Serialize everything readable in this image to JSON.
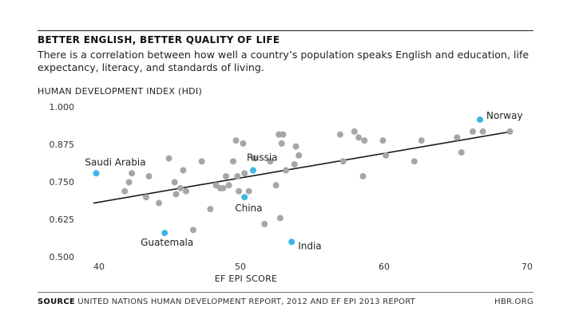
{
  "header": {
    "title": "BETTER ENGLISH, BETTER QUALITY OF LIFE",
    "subtitle": "There is a correlation between how well a country’s population speaks English and education, life expectancy, literacy, and standards of living."
  },
  "footer": {
    "source_label": "SOURCE",
    "source_text": " UNITED NATIONS HUMAN DEVELOPMENT REPORT, 2012 AND EF EPI 2013 REPORT",
    "brand": "HBR.ORG"
  },
  "chart_data": {
    "type": "scatter",
    "title": "BETTER ENGLISH, BETTER QUALITY OF LIFE",
    "xlabel": "EF EPI SCORE",
    "ylabel": "HUMAN DEVELOPMENT INDEX (HDI)",
    "xlim": [
      38,
      71
    ],
    "ylim": [
      0.5,
      1.0
    ],
    "x_ticks": [
      "40",
      "50",
      "60",
      "70"
    ],
    "y_ticks": [
      "1.000",
      "0.875",
      "0.750",
      "0.625",
      "0.500"
    ],
    "grid": false,
    "colors": {
      "points": "#a6a6a6",
      "highlight": "#3cb4e6",
      "trend": "#1a1a1a"
    },
    "trendline": {
      "x": [
        39.6,
        68.9
      ],
      "y": [
        0.68,
        0.92
      ]
    },
    "points": [
      {
        "x": 41.8,
        "y": 0.72
      },
      {
        "x": 42.1,
        "y": 0.75
      },
      {
        "x": 42.3,
        "y": 0.78
      },
      {
        "x": 43.3,
        "y": 0.7
      },
      {
        "x": 43.5,
        "y": 0.77
      },
      {
        "x": 44.2,
        "y": 0.68
      },
      {
        "x": 44.9,
        "y": 0.83
      },
      {
        "x": 45.3,
        "y": 0.75
      },
      {
        "x": 45.4,
        "y": 0.71
      },
      {
        "x": 45.7,
        "y": 0.73
      },
      {
        "x": 45.9,
        "y": 0.79
      },
      {
        "x": 46.1,
        "y": 0.72
      },
      {
        "x": 46.6,
        "y": 0.59
      },
      {
        "x": 47.2,
        "y": 0.82
      },
      {
        "x": 47.8,
        "y": 0.66
      },
      {
        "x": 48.2,
        "y": 0.74
      },
      {
        "x": 48.5,
        "y": 0.73
      },
      {
        "x": 48.7,
        "y": 0.73
      },
      {
        "x": 48.9,
        "y": 0.77
      },
      {
        "x": 49.1,
        "y": 0.74
      },
      {
        "x": 49.4,
        "y": 0.82
      },
      {
        "x": 49.6,
        "y": 0.89
      },
      {
        "x": 49.7,
        "y": 0.77
      },
      {
        "x": 49.8,
        "y": 0.72
      },
      {
        "x": 50.1,
        "y": 0.88
      },
      {
        "x": 50.2,
        "y": 0.78
      },
      {
        "x": 50.5,
        "y": 0.72
      },
      {
        "x": 50.9,
        "y": 0.83
      },
      {
        "x": 51.6,
        "y": 0.61
      },
      {
        "x": 52.0,
        "y": 0.82
      },
      {
        "x": 52.4,
        "y": 0.74
      },
      {
        "x": 52.6,
        "y": 0.91
      },
      {
        "x": 52.7,
        "y": 0.63
      },
      {
        "x": 52.8,
        "y": 0.88
      },
      {
        "x": 52.9,
        "y": 0.91
      },
      {
        "x": 53.1,
        "y": 0.79
      },
      {
        "x": 53.7,
        "y": 0.81
      },
      {
        "x": 53.8,
        "y": 0.87
      },
      {
        "x": 54.0,
        "y": 0.84
      },
      {
        "x": 56.9,
        "y": 0.91
      },
      {
        "x": 57.1,
        "y": 0.82
      },
      {
        "x": 57.9,
        "y": 0.92
      },
      {
        "x": 58.2,
        "y": 0.9
      },
      {
        "x": 58.5,
        "y": 0.77
      },
      {
        "x": 58.6,
        "y": 0.89
      },
      {
        "x": 59.9,
        "y": 0.89
      },
      {
        "x": 60.1,
        "y": 0.84
      },
      {
        "x": 62.1,
        "y": 0.82
      },
      {
        "x": 62.6,
        "y": 0.89
      },
      {
        "x": 65.1,
        "y": 0.9
      },
      {
        "x": 65.4,
        "y": 0.85
      },
      {
        "x": 66.2,
        "y": 0.92
      },
      {
        "x": 66.9,
        "y": 0.92
      },
      {
        "x": 68.8,
        "y": 0.92
      }
    ],
    "highlighted": [
      {
        "label": "Saudi Arabia",
        "x": 39.8,
        "y": 0.78
      },
      {
        "label": "Guatemala",
        "x": 44.6,
        "y": 0.58
      },
      {
        "label": "China",
        "x": 50.2,
        "y": 0.7
      },
      {
        "label": "Russia",
        "x": 50.8,
        "y": 0.79
      },
      {
        "label": "India",
        "x": 53.5,
        "y": 0.55
      },
      {
        "label": "Norway",
        "x": 66.7,
        "y": 0.96
      }
    ]
  }
}
